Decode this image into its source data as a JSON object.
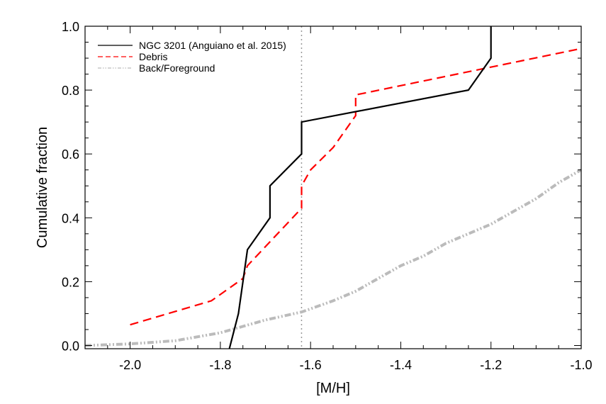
{
  "chart_data": {
    "type": "line",
    "title": "",
    "xlabel": "[M/H]",
    "ylabel": "Cumulative fraction",
    "xlim": [
      -2.1,
      -1.0
    ],
    "ylim": [
      -0.01,
      1.0
    ],
    "xticks": [
      -2.0,
      -1.8,
      -1.6,
      -1.4,
      -1.2,
      -1.0
    ],
    "xtick_labels": [
      "-2.0",
      "-1.8",
      "-1.6",
      "-1.4",
      "-1.2",
      "-1.0"
    ],
    "yticks": [
      0.0,
      0.2,
      0.4,
      0.6,
      0.8,
      1.0
    ],
    "ytick_labels": [
      "0.0",
      "0.2",
      "0.4",
      "0.6",
      "0.8",
      "1.0"
    ],
    "grid": false,
    "legend_position": "top-left",
    "vline": {
      "x": -1.62,
      "color": "#999999",
      "style": "dotted"
    },
    "series": [
      {
        "name": "NGC 3201 (Anguiano et al. 2015)",
        "color": "#000000",
        "style": "solid",
        "x": [
          -1.78,
          -1.76,
          -1.74,
          -1.69,
          -1.69,
          -1.62,
          -1.62,
          -1.25,
          -1.2,
          -1.2
        ],
        "y": [
          -0.01,
          0.1,
          0.3,
          0.4,
          0.5,
          0.6,
          0.7,
          0.8,
          0.9,
          1.0
        ]
      },
      {
        "name": "Debris",
        "color": "#ff0000",
        "style": "dashed",
        "x": [
          -2.0,
          -1.82,
          -1.75,
          -1.74,
          -1.62,
          -1.62,
          -1.6,
          -1.55,
          -1.5,
          -1.5,
          -1.0
        ],
        "y": [
          0.065,
          0.14,
          0.21,
          0.25,
          0.43,
          0.5,
          0.55,
          0.62,
          0.72,
          0.785,
          0.93
        ]
      },
      {
        "name": "Back/Foreground",
        "color": "#bbbbbb",
        "style": "dash-dot-dot",
        "x": [
          -2.1,
          -2.0,
          -1.9,
          -1.8,
          -1.75,
          -1.7,
          -1.62,
          -1.55,
          -1.5,
          -1.45,
          -1.4,
          -1.35,
          -1.3,
          -1.25,
          -1.2,
          -1.15,
          -1.1,
          -1.05,
          -1.0
        ],
        "y": [
          0.0,
          0.005,
          0.015,
          0.04,
          0.06,
          0.08,
          0.105,
          0.14,
          0.17,
          0.21,
          0.25,
          0.28,
          0.32,
          0.35,
          0.38,
          0.42,
          0.46,
          0.51,
          0.55
        ]
      }
    ]
  }
}
